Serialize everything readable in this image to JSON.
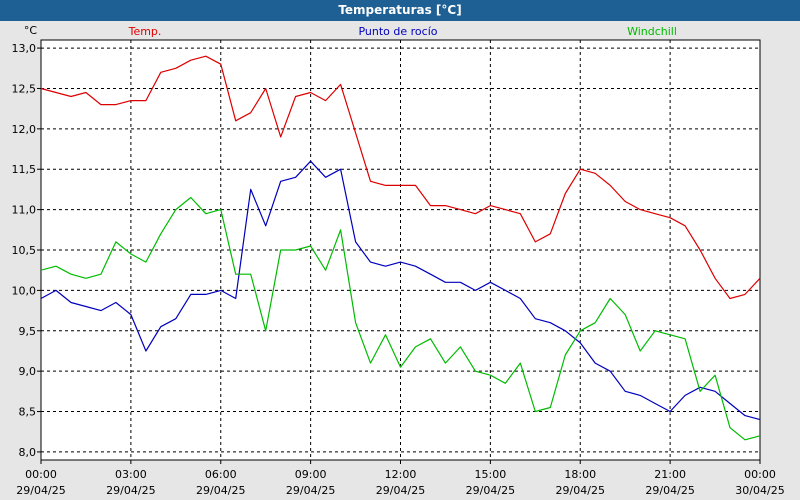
{
  "window": {
    "title": "Temperaturas [°C]"
  },
  "chart_data": {
    "type": "line",
    "title": "Temperaturas [°C]",
    "ylabel": "°C",
    "xlabel": "",
    "ylim": [
      7.9,
      13.1
    ],
    "y_ticks": [
      "13,0",
      "12,5",
      "12,0",
      "11,5",
      "11,0",
      "10,5",
      "10,0",
      "9,5",
      "9,0",
      "8,5",
      "8,0"
    ],
    "y_tick_values": [
      13.0,
      12.5,
      12.0,
      11.5,
      11.0,
      10.5,
      10.0,
      9.5,
      9.0,
      8.5,
      8.0
    ],
    "x_ticks": [
      {
        "time": "00:00",
        "date": "29/04/25"
      },
      {
        "time": "03:00",
        "date": "29/04/25"
      },
      {
        "time": "06:00",
        "date": "29/04/25"
      },
      {
        "time": "09:00",
        "date": "29/04/25"
      },
      {
        "time": "12:00",
        "date": "29/04/25"
      },
      {
        "time": "15:00",
        "date": "29/04/25"
      },
      {
        "time": "18:00",
        "date": "29/04/25"
      },
      {
        "time": "21:00",
        "date": "29/04/25"
      },
      {
        "time": "00:00",
        "date": "30/04/25"
      }
    ],
    "grid": true,
    "legend_placement": "top",
    "x": [
      "00:00",
      "00:30",
      "01:00",
      "01:30",
      "02:00",
      "02:30",
      "03:00",
      "03:30",
      "04:00",
      "04:30",
      "05:00",
      "05:30",
      "06:00",
      "06:30",
      "07:00",
      "07:30",
      "08:00",
      "08:30",
      "09:00",
      "09:30",
      "10:00",
      "10:30",
      "11:00",
      "11:30",
      "12:00",
      "12:30",
      "13:00",
      "13:30",
      "14:00",
      "14:30",
      "15:00",
      "15:30",
      "16:00",
      "16:30",
      "17:00",
      "17:30",
      "18:00",
      "18:30",
      "19:00",
      "19:30",
      "20:00",
      "20:30",
      "21:00",
      "21:30",
      "22:00",
      "22:30",
      "23:00",
      "23:30",
      "00:00"
    ],
    "series": [
      {
        "name": "Temp.",
        "color": "#dd0000",
        "values": [
          12.5,
          12.45,
          12.4,
          12.45,
          12.3,
          12.3,
          12.35,
          12.35,
          12.7,
          12.75,
          12.85,
          12.9,
          12.8,
          12.1,
          12.2,
          12.5,
          11.9,
          12.4,
          12.45,
          12.35,
          12.55,
          11.95,
          11.35,
          11.3,
          11.3,
          11.3,
          11.05,
          11.05,
          11.0,
          10.95,
          11.05,
          11.0,
          10.95,
          10.6,
          10.7,
          11.2,
          11.5,
          11.45,
          11.3,
          11.1,
          11.0,
          10.95,
          10.9,
          10.8,
          10.5,
          10.15,
          9.9,
          9.95,
          10.15
        ]
      },
      {
        "name": "Punto de rocío",
        "color": "#0000bb",
        "values": [
          9.9,
          10.0,
          9.85,
          9.8,
          9.75,
          9.85,
          9.7,
          9.25,
          9.55,
          9.65,
          9.95,
          9.95,
          10.0,
          9.9,
          11.25,
          10.8,
          11.35,
          11.4,
          11.6,
          11.4,
          11.5,
          10.6,
          10.35,
          10.3,
          10.35,
          10.3,
          10.2,
          10.1,
          10.1,
          10.0,
          10.1,
          10.0,
          9.9,
          9.65,
          9.6,
          9.5,
          9.35,
          9.1,
          9.0,
          8.75,
          8.7,
          8.6,
          8.5,
          8.7,
          8.8,
          8.75,
          8.6,
          8.45,
          8.4
        ]
      },
      {
        "name": "Windchill",
        "color": "#00bb00",
        "values": [
          10.25,
          10.3,
          10.2,
          10.15,
          10.2,
          10.6,
          10.45,
          10.35,
          10.7,
          11.0,
          11.15,
          10.95,
          11.0,
          10.2,
          10.2,
          9.5,
          10.5,
          10.5,
          10.55,
          10.25,
          10.75,
          9.6,
          9.1,
          9.45,
          9.05,
          9.3,
          9.4,
          9.1,
          9.3,
          9.0,
          8.95,
          8.85,
          9.1,
          8.5,
          8.55,
          9.2,
          9.5,
          9.6,
          9.9,
          9.7,
          9.25,
          9.5,
          9.45,
          9.4,
          8.75,
          8.95,
          8.3,
          8.15,
          8.2
        ]
      }
    ]
  }
}
